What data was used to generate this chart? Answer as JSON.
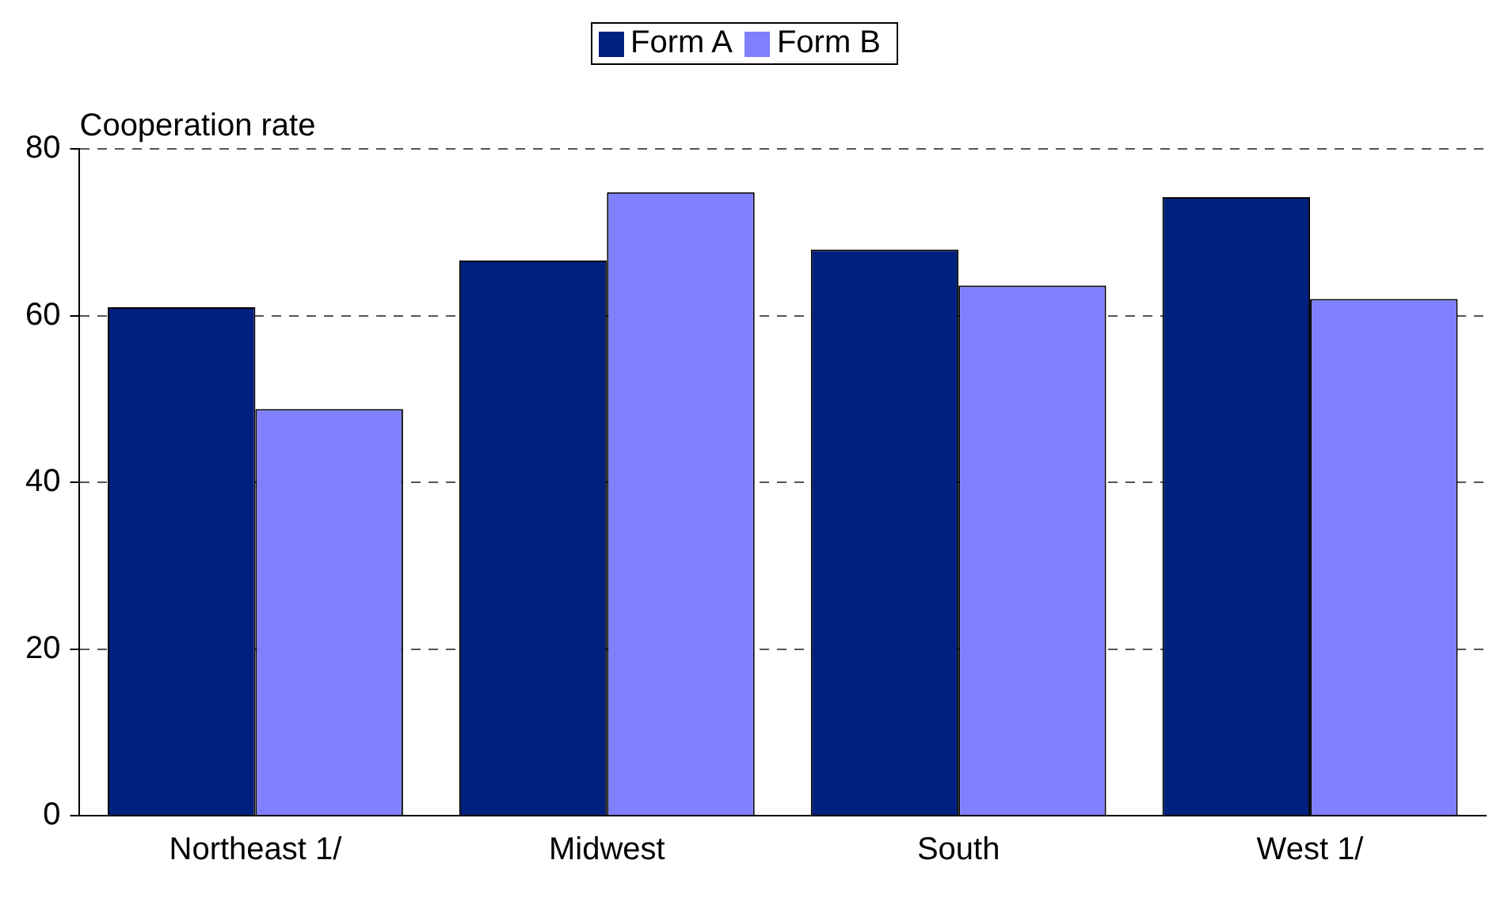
{
  "chart_data": {
    "type": "bar",
    "ylabel": "Cooperation rate",
    "categories": [
      "Northeast 1/",
      "Midwest",
      "South",
      "West 1/"
    ],
    "series": [
      {
        "name": "Form A",
        "color": "#002080",
        "values": [
          61,
          66.6,
          67.9,
          74.2
        ]
      },
      {
        "name": "Form B",
        "color": "#8080ff",
        "values": [
          48.8,
          74.8,
          63.6,
          62
        ]
      }
    ],
    "ylim": [
      0,
      80
    ],
    "yticks": [
      0,
      20,
      40,
      60,
      80
    ],
    "grid": "y",
    "legend": "top"
  }
}
